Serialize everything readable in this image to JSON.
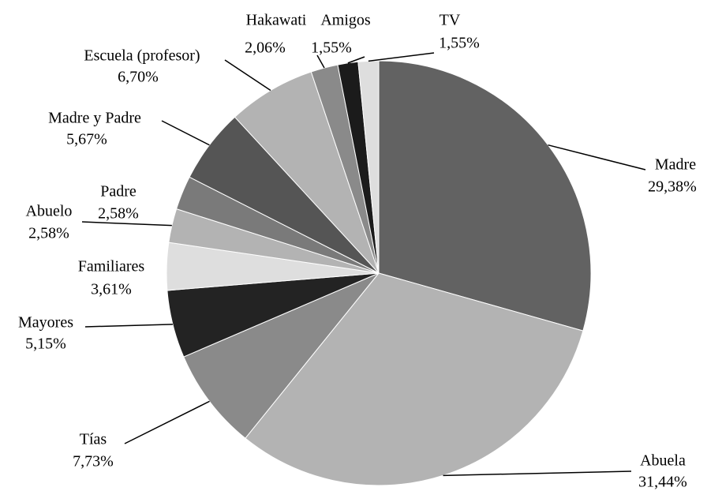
{
  "chart_data": {
    "type": "pie",
    "categories": [
      "Madre",
      "Abuela",
      "Tías",
      "Mayores",
      "Familiares",
      "Abuelo",
      "Padre",
      "Madre y Padre",
      "Escuela (profesor)",
      "Hakawati",
      "Amigos",
      "TV"
    ],
    "values": [
      29.38,
      31.44,
      7.73,
      5.15,
      3.61,
      2.58,
      2.58,
      5.67,
      6.7,
      2.06,
      1.55,
      1.55
    ],
    "value_labels": [
      "29,38%",
      "31,44%",
      "7,73%",
      "5,15%",
      "3,61%",
      "2,58%",
      "2,58%",
      "5,67%",
      "6,70%",
      "2,06%",
      "1,55%",
      "1,55%"
    ],
    "colors": [
      "#626262",
      "#b3b3b3",
      "#8a8a8a",
      "#232323",
      "#dedede",
      "#b3b3b3",
      "#7a7a7a",
      "#555555",
      "#b3b3b3",
      "#8a8a8a",
      "#1b1b1b",
      "#dedede"
    ]
  }
}
